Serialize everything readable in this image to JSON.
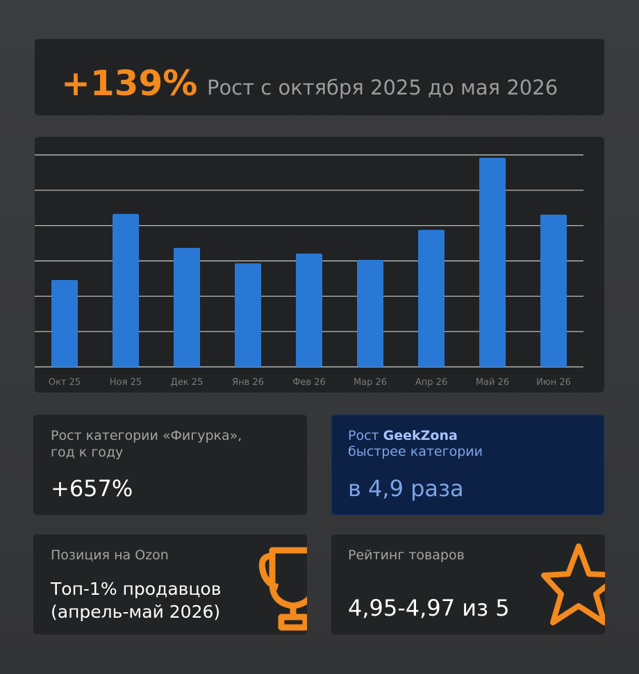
{
  "header": {
    "value": "+139%",
    "text": "Рост с октября 2025 до мая 2026"
  },
  "chart_data": {
    "type": "bar",
    "categories": [
      "Окт 25",
      "Ноя 25",
      "Дек 25",
      "Янв 26",
      "Фев 26",
      "Мар 26",
      "Апр 26",
      "Май 26",
      "Июн 26"
    ],
    "values": [
      2.46,
      4.33,
      3.37,
      2.93,
      3.21,
      3.03,
      3.88,
      5.92,
      4.31
    ],
    "color": "#2a78d6",
    "ylim": [
      0,
      6
    ],
    "yticks": [
      0,
      1,
      2,
      3,
      4,
      5,
      6
    ],
    "grid": true
  },
  "cards": [
    {
      "label_lines": [
        "Рост категории «Фигурка»,",
        "год к году"
      ],
      "value": "+657%"
    },
    {
      "label_lines": [
        [
          "Рост ",
          "GeekZona"
        ],
        [
          "быстрее категории"
        ]
      ],
      "value": "в 4,9 раза"
    },
    {
      "label": "Позиция на Ozon",
      "value_lines": [
        "Топ-1% продавцов",
        "(апрель-май 2026)"
      ]
    },
    {
      "label": "Рейтинг товаров",
      "value": "4,95-4,97 из 5"
    }
  ]
}
